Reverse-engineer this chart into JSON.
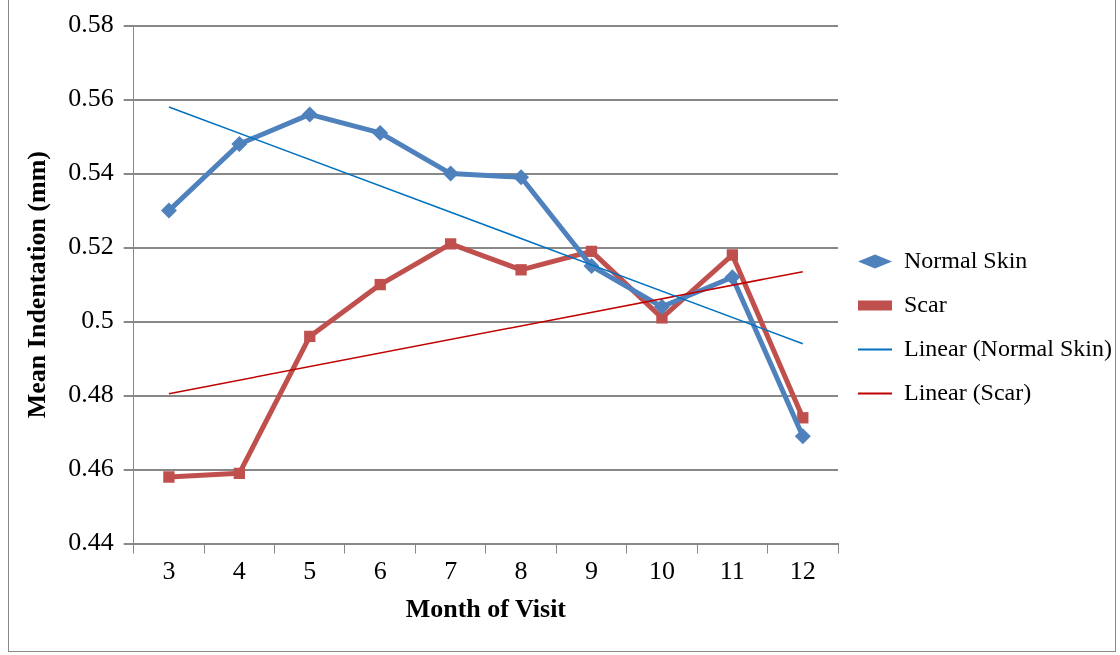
{
  "chart_data": {
    "type": "line",
    "xlabel": "Month of Visit",
    "ylabel": "Mean Indentation (mm)",
    "categories": [
      "3",
      "4",
      "5",
      "6",
      "7",
      "8",
      "9",
      "10",
      "11",
      "12"
    ],
    "series": [
      {
        "name": "Normal Skin",
        "color": "#4f81bd",
        "marker": "diamond",
        "values": [
          0.53,
          0.548,
          0.556,
          0.551,
          0.54,
          0.539,
          0.515,
          0.504,
          0.512,
          0.469
        ]
      },
      {
        "name": "Scar",
        "color": "#c0504d",
        "marker": "square",
        "values": [
          0.458,
          0.459,
          0.496,
          0.51,
          0.521,
          0.514,
          0.519,
          0.501,
          0.518,
          0.474
        ]
      },
      {
        "name": "Linear (Normal Skin)",
        "color": "#0070c0",
        "marker": "none",
        "x": [
          "3",
          "12"
        ],
        "values": [
          0.558,
          0.494
        ]
      },
      {
        "name": "Linear (Scar)",
        "color": "#c00000",
        "marker": "none",
        "x": [
          "3",
          "12"
        ],
        "values": [
          0.4805,
          0.5135
        ]
      }
    ],
    "ylim": [
      0.44,
      0.58
    ],
    "yticks": [
      0.44,
      0.46,
      0.48,
      0.5,
      0.52,
      0.54,
      0.56,
      0.58
    ],
    "grid": "y",
    "legend": "right"
  }
}
